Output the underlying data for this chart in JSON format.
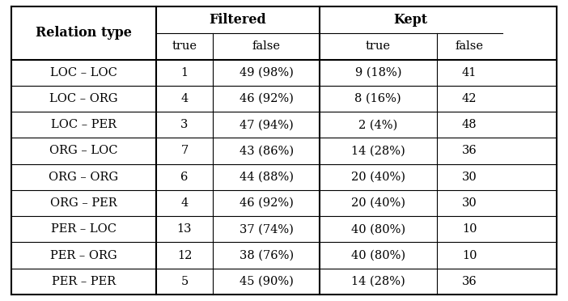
{
  "col_header_row1": [
    "Relation type",
    "Filtered",
    "Kept"
  ],
  "col_header_row2": [
    "true",
    "false",
    "true",
    "false"
  ],
  "rows": [
    [
      "LOC – LOC",
      "1",
      "49 (98%)",
      "9 (18%)",
      "41"
    ],
    [
      "LOC – ORG",
      "4",
      "46 (92%)",
      "8 (16%)",
      "42"
    ],
    [
      "LOC – PER",
      "3",
      "47 (94%)",
      "2 (4%)",
      "48"
    ],
    [
      "ORG – LOC",
      "7",
      "43 (86%)",
      "14 (28%)",
      "36"
    ],
    [
      "ORG – ORG",
      "6",
      "44 (88%)",
      "20 (40%)",
      "30"
    ],
    [
      "ORG – PER",
      "4",
      "46 (92%)",
      "20 (40%)",
      "30"
    ],
    [
      "PER – LOC",
      "13",
      "37 (74%)",
      "40 (80%)",
      "10"
    ],
    [
      "PER – ORG",
      "12",
      "38 (76%)",
      "40 (80%)",
      "10"
    ],
    [
      "PER – PER",
      "5",
      "45 (90%)",
      "14 (28%)",
      "36"
    ]
  ],
  "background_color": "#ffffff",
  "text_color": "#000000",
  "line_color": "#000000",
  "font_size": 10.5,
  "header_font_size": 11.5
}
